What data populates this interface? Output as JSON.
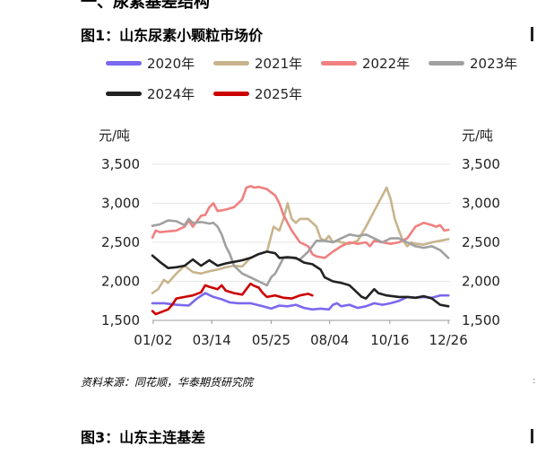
{
  "header": {
    "section_title": "一、尿素基差结构",
    "figure1_title": "图1：山东尿素小颗粒市场价",
    "figure3_title": "图3：山东主连基差",
    "source": "资料来源：同花顺，华泰期货研究院"
  },
  "chart_data": {
    "type": "line",
    "left_unit": "元/吨",
    "right_unit": "元/吨",
    "ylim": [
      1500,
      3500
    ],
    "yticks": [
      "1,500",
      "2,000",
      "2,500",
      "3,000",
      "3,500"
    ],
    "ytick_values": [
      1500,
      2000,
      2500,
      3000,
      3500
    ],
    "xlim": [
      1,
      362
    ],
    "xticks": [
      "01/02",
      "03/14",
      "05/25",
      "08/04",
      "10/16",
      "12/26"
    ],
    "xtick_values": [
      2,
      73,
      145,
      216,
      289,
      360
    ],
    "legend_position": "top",
    "grid": "horizontal",
    "series": [
      {
        "name": "2020年",
        "color": "#7b68ee",
        "points": [
          [
            1,
            1720
          ],
          [
            15,
            1720
          ],
          [
            30,
            1700
          ],
          [
            45,
            1690
          ],
          [
            55,
            1780
          ],
          [
            65,
            1850
          ],
          [
            75,
            1800
          ],
          [
            85,
            1770
          ],
          [
            95,
            1730
          ],
          [
            105,
            1720
          ],
          [
            120,
            1720
          ],
          [
            135,
            1680
          ],
          [
            145,
            1650
          ],
          [
            155,
            1690
          ],
          [
            165,
            1680
          ],
          [
            175,
            1700
          ],
          [
            185,
            1660
          ],
          [
            195,
            1640
          ],
          [
            205,
            1650
          ],
          [
            215,
            1640
          ],
          [
            220,
            1700
          ],
          [
            225,
            1720
          ],
          [
            230,
            1680
          ],
          [
            240,
            1700
          ],
          [
            250,
            1660
          ],
          [
            260,
            1680
          ],
          [
            270,
            1720
          ],
          [
            280,
            1700
          ],
          [
            290,
            1720
          ],
          [
            300,
            1750
          ],
          [
            310,
            1800
          ],
          [
            320,
            1790
          ],
          [
            330,
            1800
          ],
          [
            340,
            1790
          ],
          [
            350,
            1820
          ],
          [
            355,
            1820
          ],
          [
            360,
            1820
          ]
        ]
      },
      {
        "name": "2021年",
        "color": "#c8b48c",
        "points": [
          [
            1,
            1850
          ],
          [
            8,
            1900
          ],
          [
            15,
            2020
          ],
          [
            20,
            1980
          ],
          [
            30,
            2100
          ],
          [
            40,
            2200
          ],
          [
            50,
            2120
          ],
          [
            60,
            2100
          ],
          [
            70,
            2130
          ],
          [
            80,
            2150
          ],
          [
            90,
            2180
          ],
          [
            100,
            2200
          ],
          [
            110,
            2190
          ],
          [
            120,
            2300
          ],
          [
            130,
            2350
          ],
          [
            140,
            2380
          ],
          [
            148,
            2700
          ],
          [
            155,
            2650
          ],
          [
            160,
            2800
          ],
          [
            165,
            3000
          ],
          [
            170,
            2800
          ],
          [
            175,
            2750
          ],
          [
            180,
            2800
          ],
          [
            190,
            2800
          ],
          [
            200,
            2700
          ],
          [
            205,
            2550
          ],
          [
            210,
            2520
          ],
          [
            215,
            2580
          ],
          [
            220,
            2500
          ],
          [
            225,
            2520
          ],
          [
            230,
            2500
          ],
          [
            240,
            2480
          ],
          [
            250,
            2520
          ],
          [
            260,
            2700
          ],
          [
            270,
            2900
          ],
          [
            280,
            3100
          ],
          [
            285,
            3200
          ],
          [
            290,
            3050
          ],
          [
            295,
            2800
          ],
          [
            300,
            2650
          ],
          [
            305,
            2520
          ],
          [
            310,
            2450
          ],
          [
            315,
            2500
          ],
          [
            320,
            2480
          ],
          [
            330,
            2470
          ],
          [
            340,
            2500
          ],
          [
            350,
            2520
          ],
          [
            360,
            2540
          ]
        ]
      },
      {
        "name": "2022年",
        "color": "#f08080",
        "points": [
          [
            1,
            2560
          ],
          [
            5,
            2650
          ],
          [
            10,
            2630
          ],
          [
            20,
            2640
          ],
          [
            30,
            2650
          ],
          [
            40,
            2700
          ],
          [
            45,
            2780
          ],
          [
            50,
            2700
          ],
          [
            60,
            2840
          ],
          [
            65,
            2850
          ],
          [
            70,
            2950
          ],
          [
            75,
            3000
          ],
          [
            80,
            2900
          ],
          [
            90,
            2920
          ],
          [
            100,
            2950
          ],
          [
            110,
            3050
          ],
          [
            115,
            3200
          ],
          [
            120,
            3220
          ],
          [
            125,
            3200
          ],
          [
            130,
            3210
          ],
          [
            140,
            3180
          ],
          [
            150,
            3100
          ],
          [
            155,
            3000
          ],
          [
            160,
            2850
          ],
          [
            170,
            2650
          ],
          [
            180,
            2500
          ],
          [
            190,
            2450
          ],
          [
            195,
            2350
          ],
          [
            200,
            2320
          ],
          [
            210,
            2300
          ],
          [
            220,
            2380
          ],
          [
            230,
            2450
          ],
          [
            240,
            2500
          ],
          [
            250,
            2480
          ],
          [
            260,
            2500
          ],
          [
            265,
            2450
          ],
          [
            270,
            2520
          ],
          [
            280,
            2500
          ],
          [
            290,
            2480
          ],
          [
            300,
            2500
          ],
          [
            310,
            2550
          ],
          [
            320,
            2700
          ],
          [
            330,
            2750
          ],
          [
            340,
            2720
          ],
          [
            345,
            2700
          ],
          [
            350,
            2720
          ],
          [
            355,
            2650
          ],
          [
            360,
            2660
          ]
        ]
      },
      {
        "name": "2023年",
        "color": "#a0a0a0",
        "points": [
          [
            1,
            2710
          ],
          [
            10,
            2730
          ],
          [
            20,
            2780
          ],
          [
            30,
            2770
          ],
          [
            40,
            2720
          ],
          [
            45,
            2800
          ],
          [
            50,
            2750
          ],
          [
            60,
            2760
          ],
          [
            70,
            2740
          ],
          [
            75,
            2750
          ],
          [
            80,
            2700
          ],
          [
            85,
            2600
          ],
          [
            90,
            2450
          ],
          [
            95,
            2350
          ],
          [
            100,
            2200
          ],
          [
            105,
            2150
          ],
          [
            110,
            2100
          ],
          [
            120,
            2050
          ],
          [
            130,
            2000
          ],
          [
            140,
            1950
          ],
          [
            145,
            2050
          ],
          [
            150,
            2100
          ],
          [
            155,
            2200
          ],
          [
            160,
            2300
          ],
          [
            170,
            2300
          ],
          [
            180,
            2280
          ],
          [
            190,
            2380
          ],
          [
            200,
            2520
          ],
          [
            210,
            2520
          ],
          [
            220,
            2500
          ],
          [
            230,
            2550
          ],
          [
            240,
            2600
          ],
          [
            250,
            2580
          ],
          [
            260,
            2600
          ],
          [
            270,
            2550
          ],
          [
            280,
            2500
          ],
          [
            290,
            2550
          ],
          [
            300,
            2550
          ],
          [
            310,
            2500
          ],
          [
            320,
            2450
          ],
          [
            330,
            2430
          ],
          [
            340,
            2450
          ],
          [
            350,
            2400
          ],
          [
            355,
            2350
          ],
          [
            360,
            2300
          ]
        ]
      },
      {
        "name": "2024年",
        "color": "#222222",
        "points": [
          [
            1,
            2330
          ],
          [
            10,
            2250
          ],
          [
            20,
            2170
          ],
          [
            30,
            2180
          ],
          [
            40,
            2200
          ],
          [
            50,
            2280
          ],
          [
            60,
            2200
          ],
          [
            70,
            2270
          ],
          [
            80,
            2200
          ],
          [
            90,
            2230
          ],
          [
            100,
            2250
          ],
          [
            110,
            2270
          ],
          [
            120,
            2300
          ],
          [
            130,
            2350
          ],
          [
            140,
            2380
          ],
          [
            150,
            2360
          ],
          [
            155,
            2300
          ],
          [
            165,
            2310
          ],
          [
            175,
            2300
          ],
          [
            185,
            2240
          ],
          [
            195,
            2220
          ],
          [
            205,
            2150
          ],
          [
            210,
            2050
          ],
          [
            220,
            2000
          ],
          [
            230,
            1980
          ],
          [
            240,
            1950
          ],
          [
            245,
            1900
          ],
          [
            250,
            1850
          ],
          [
            255,
            1800
          ],
          [
            260,
            1780
          ],
          [
            270,
            1900
          ],
          [
            275,
            1850
          ],
          [
            285,
            1820
          ],
          [
            300,
            1800
          ],
          [
            310,
            1800
          ],
          [
            320,
            1790
          ],
          [
            330,
            1810
          ],
          [
            340,
            1780
          ],
          [
            350,
            1700
          ],
          [
            360,
            1680
          ]
        ]
      },
      {
        "name": "2025年",
        "color": "#cc0000",
        "points": [
          [
            1,
            1620
          ],
          [
            5,
            1580
          ],
          [
            10,
            1600
          ],
          [
            20,
            1640
          ],
          [
            25,
            1700
          ],
          [
            30,
            1780
          ],
          [
            40,
            1800
          ],
          [
            50,
            1820
          ],
          [
            60,
            1860
          ],
          [
            65,
            1950
          ],
          [
            70,
            1930
          ],
          [
            80,
            1900
          ],
          [
            85,
            1950
          ],
          [
            90,
            1880
          ],
          [
            100,
            1850
          ],
          [
            110,
            1830
          ],
          [
            115,
            1900
          ],
          [
            120,
            1970
          ],
          [
            125,
            1940
          ],
          [
            130,
            1920
          ],
          [
            135,
            1850
          ],
          [
            140,
            1800
          ],
          [
            150,
            1820
          ],
          [
            160,
            1790
          ],
          [
            170,
            1780
          ],
          [
            180,
            1820
          ],
          [
            190,
            1840
          ],
          [
            195,
            1820
          ]
        ]
      }
    ]
  }
}
